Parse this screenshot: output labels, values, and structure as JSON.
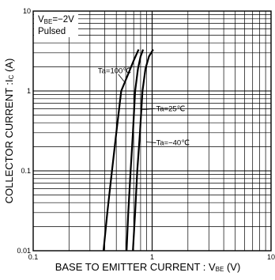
{
  "chart_data": {
    "type": "line",
    "title": "",
    "xlabel": {
      "main": "BASE TO EMITTER CURRENT : V",
      "sub": "BE",
      "unit": " (V)"
    },
    "ylabel": {
      "main": "COLLECTOR CURRENT :I",
      "sub": "C",
      "unit": " (A)"
    },
    "x_scale": "log",
    "y_scale": "log",
    "xlim": [
      0.1,
      10
    ],
    "ylim": [
      0.01,
      10
    ],
    "grid": true,
    "x_ticks": [
      "0.1",
      "1",
      "10"
    ],
    "y_ticks": [
      "10",
      "1",
      "0.1",
      "0.01"
    ],
    "conditions": [
      {
        "main": "V",
        "sub": "BE",
        "rest": "=−2V"
      },
      {
        "main": "Pulsed",
        "sub": "",
        "rest": ""
      }
    ],
    "series": [
      {
        "name": "Ta=100℃",
        "x": [
          0.39,
          0.42,
          0.46,
          0.5,
          0.55,
          0.62,
          0.7,
          0.77
        ],
        "y": [
          0.01,
          0.03,
          0.1,
          0.3,
          1.0,
          1.55,
          2.4,
          3.3
        ]
      },
      {
        "name": "Ta=25℃",
        "x": [
          0.61,
          0.63,
          0.66,
          0.69,
          0.72,
          0.76,
          0.8,
          0.84
        ],
        "y": [
          0.01,
          0.03,
          0.1,
          0.3,
          1.0,
          1.9,
          2.7,
          3.3
        ]
      },
      {
        "name": "Ta=−40℃",
        "x": [
          0.69,
          0.72,
          0.75,
          0.79,
          0.83,
          0.88,
          0.94,
          1.02
        ],
        "y": [
          0.01,
          0.03,
          0.1,
          0.3,
          1.0,
          1.9,
          2.7,
          3.3
        ]
      }
    ]
  }
}
